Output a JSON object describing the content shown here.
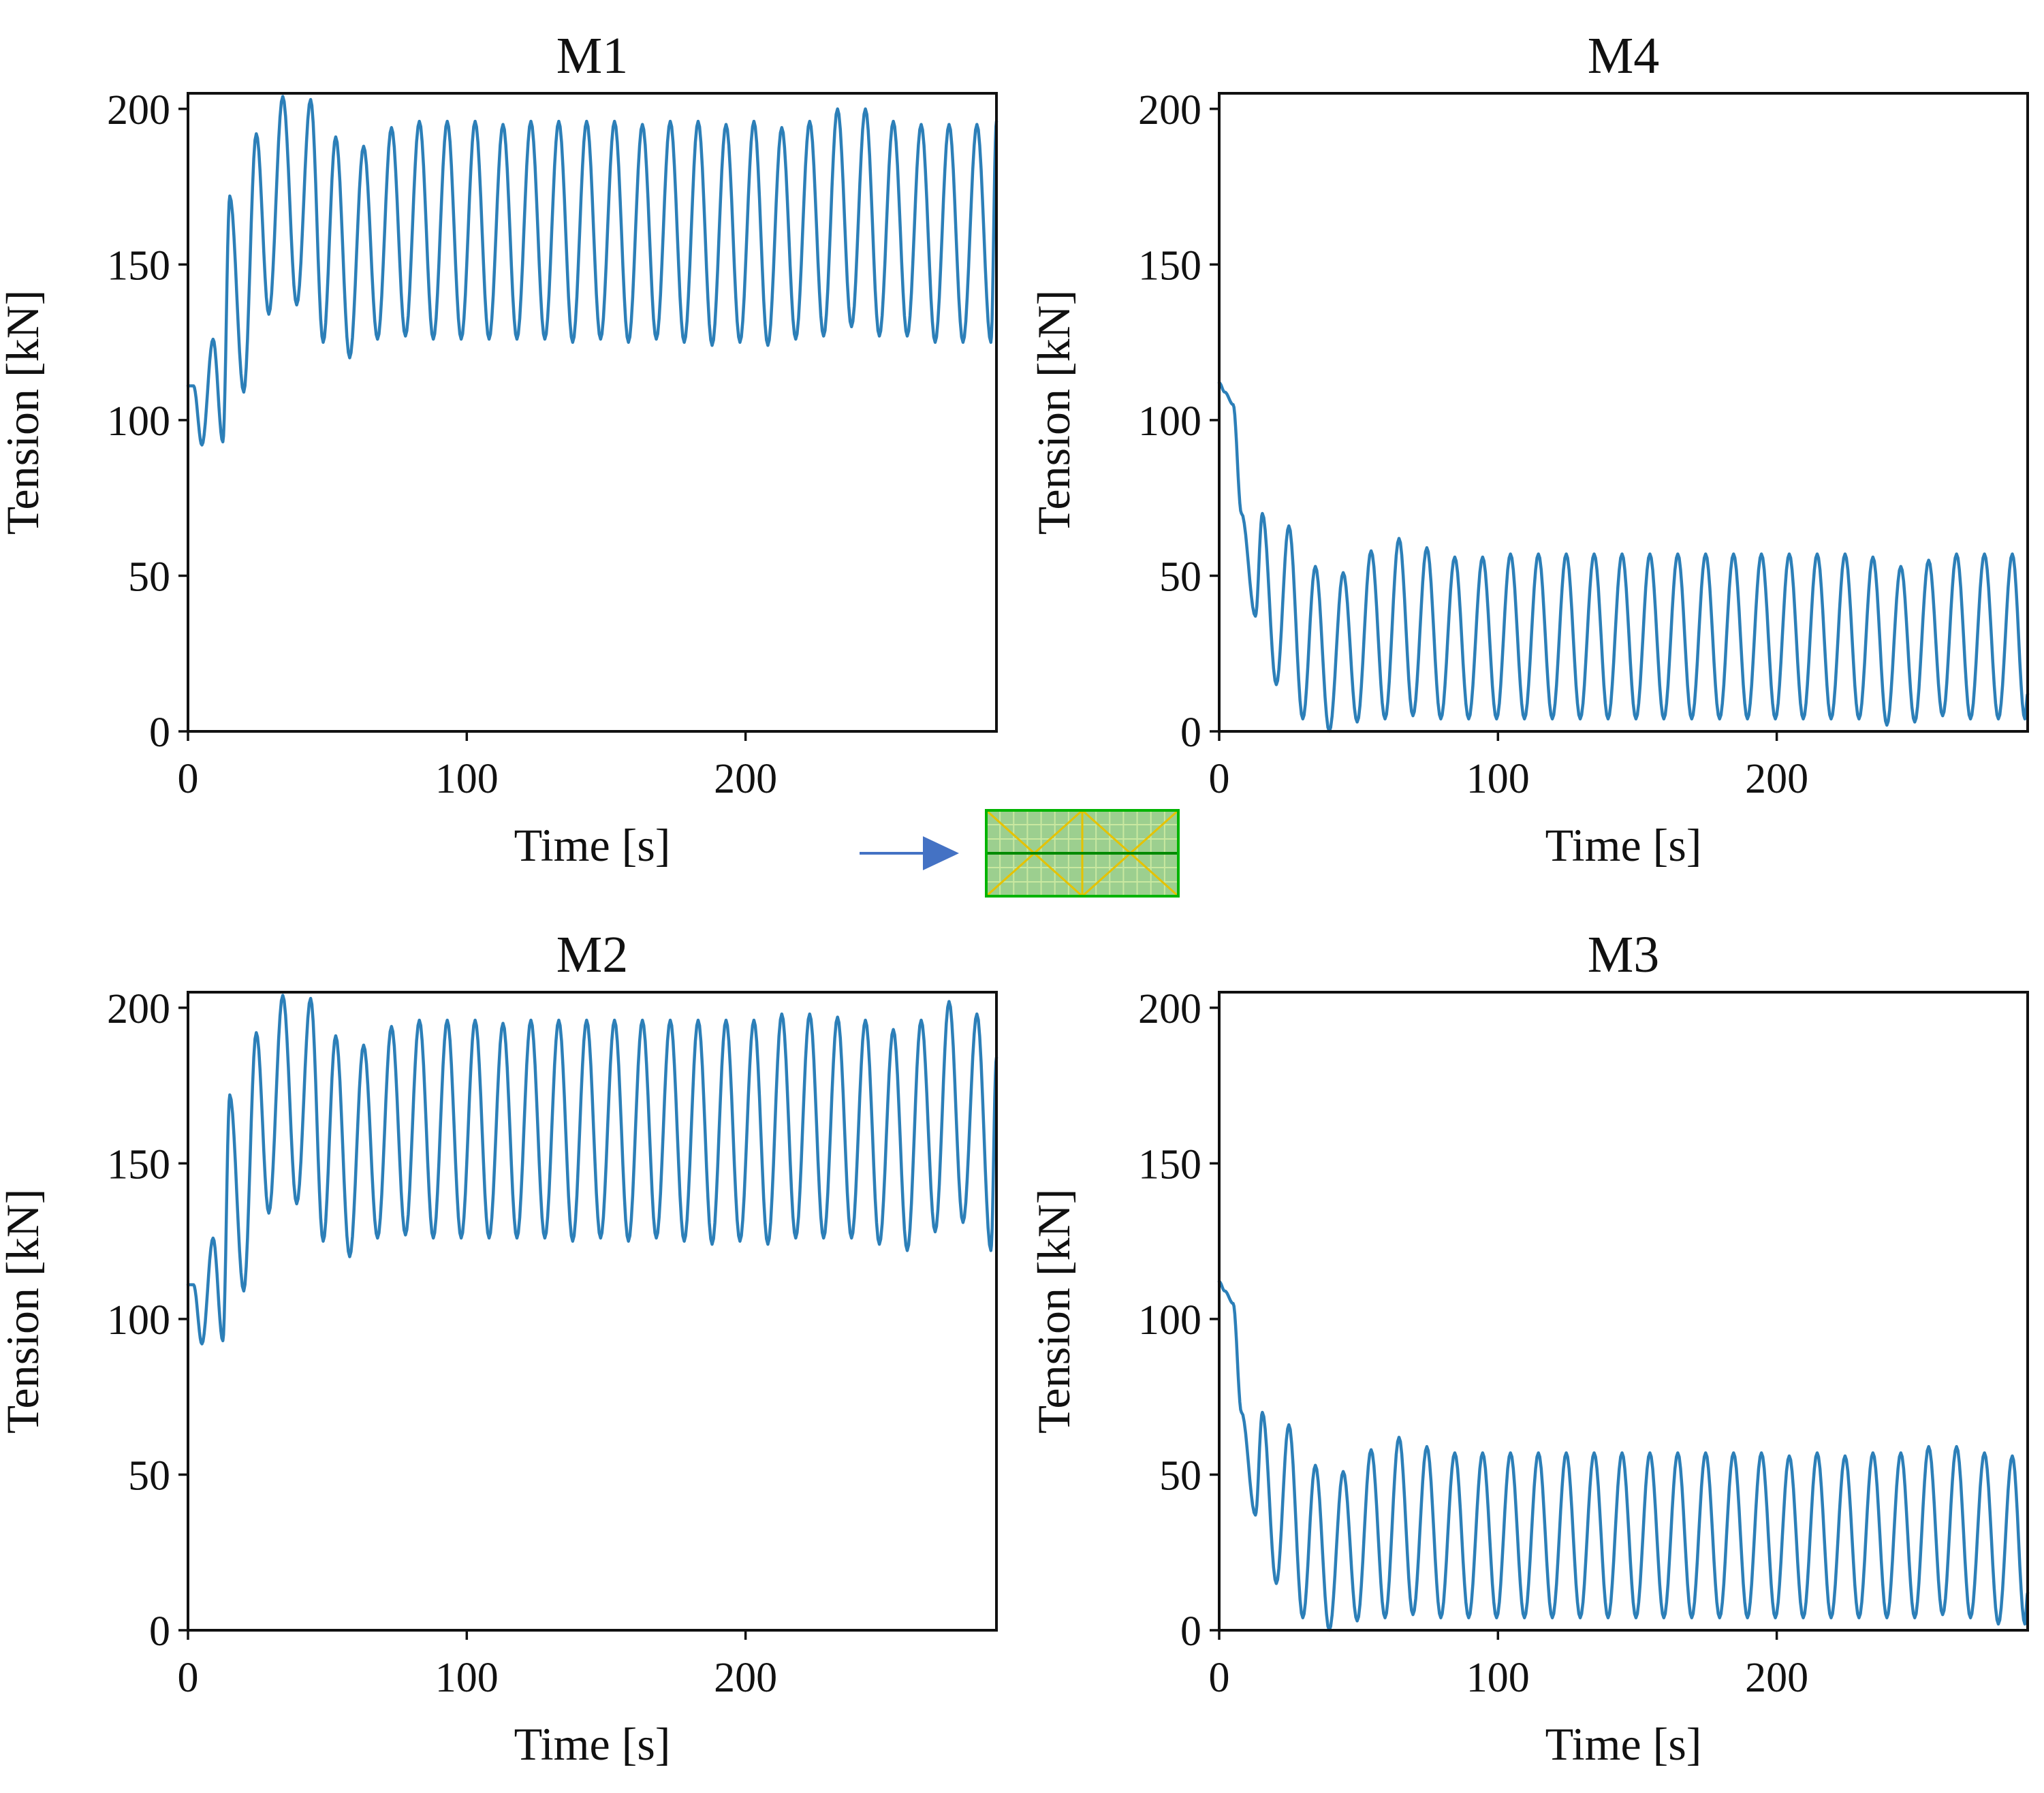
{
  "colors": {
    "line": "#2c7fb8",
    "arrow": "#4472c4",
    "inset_fill": "#9ccf8f",
    "inset_border": "#00b400",
    "inset_diag": "#e6c200"
  },
  "inset": {
    "icon": "platform-mooring-plan-icon",
    "arrow_icon": "arrow-right-icon"
  },
  "chart_data": [
    {
      "type": "line",
      "title": "M1",
      "xlabel": "Time [s]",
      "ylabel": "Tension [kN]",
      "xlim": [
        0,
        290
      ],
      "ylim": [
        0,
        205
      ],
      "xticks": [
        0,
        100,
        200
      ],
      "yticks": [
        0,
        50,
        100,
        150,
        200
      ],
      "series": [
        {
          "name": "M1",
          "x": [
            0,
            2,
            5,
            9,
            12.5,
            15,
            20,
            24.5,
            29,
            34,
            39,
            44,
            48.5,
            53,
            58,
            63,
            68,
            73,
            78,
            83,
            88,
            93,
            98,
            103,
            108,
            113,
            118,
            123,
            128,
            133,
            138,
            143,
            148,
            153,
            158,
            163,
            168,
            173,
            178,
            183,
            188,
            193,
            198,
            203,
            208,
            213,
            218,
            223,
            228,
            233,
            238,
            243,
            248,
            253,
            258,
            263,
            268,
            273,
            278,
            283,
            288,
            290
          ],
          "y": [
            111,
            111,
            92,
            126,
            93,
            172,
            109,
            192,
            134,
            204,
            137,
            203,
            125,
            191,
            120,
            188,
            126,
            194,
            127,
            196,
            126,
            196,
            126,
            196,
            126,
            195,
            126,
            196,
            126,
            196,
            125,
            196,
            126,
            196,
            125,
            195,
            126,
            196,
            125,
            196,
            124,
            195,
            125,
            196,
            124,
            194,
            126,
            196,
            127,
            200,
            130,
            200,
            127,
            196,
            127,
            195,
            125,
            195,
            125,
            195,
            125,
            196
          ]
        }
      ]
    },
    {
      "type": "line",
      "title": "M4",
      "xlabel": "Time [s]",
      "ylabel": "Tension [kN]",
      "xlim": [
        0,
        290
      ],
      "ylim": [
        0,
        205
      ],
      "xticks": [
        0,
        100,
        200
      ],
      "yticks": [
        0,
        50,
        100,
        150,
        200
      ],
      "series": [
        {
          "name": "M4",
          "x": [
            0,
            2,
            5,
            8,
            13,
            15.5,
            20.5,
            25,
            30,
            34.5,
            39.5,
            44.5,
            49.5,
            54.5,
            59.5,
            64.5,
            69.5,
            74.5,
            79.5,
            84.5,
            89.5,
            94.5,
            99.5,
            104.5,
            109.5,
            114.5,
            119.5,
            124.5,
            129.5,
            134.5,
            139.5,
            144.5,
            149.5,
            154.5,
            159.5,
            164.5,
            169.5,
            174.5,
            179.5,
            184.5,
            189.5,
            194.5,
            199.5,
            204.5,
            209.5,
            214.5,
            219.5,
            224.5,
            229.5,
            234.5,
            239.5,
            244.5,
            249.5,
            254.5,
            259.5,
            264.5,
            269.5,
            274.5,
            279.5,
            284.5,
            289,
            290
          ],
          "y": [
            112,
            109,
            105,
            70,
            37,
            70,
            15,
            66,
            4,
            53,
            0,
            51,
            3,
            58,
            4,
            62,
            5,
            59,
            4,
            56,
            4,
            56,
            4,
            57,
            4,
            57,
            4,
            57,
            4,
            57,
            4,
            57,
            4,
            57,
            4,
            57,
            4,
            57,
            4,
            57,
            4,
            57,
            4,
            57,
            4,
            57,
            4,
            57,
            4,
            56,
            2,
            53,
            3,
            55,
            5,
            57,
            4,
            57,
            4,
            57,
            4,
            12
          ]
        }
      ]
    },
    {
      "type": "line",
      "title": "M2",
      "xlabel": "Time [s]",
      "ylabel": "Tension [kN]",
      "xlim": [
        0,
        290
      ],
      "ylim": [
        0,
        205
      ],
      "xticks": [
        0,
        100,
        200
      ],
      "yticks": [
        0,
        50,
        100,
        150,
        200
      ],
      "series": [
        {
          "name": "M2",
          "x": [
            0,
            2,
            5,
            9,
            12.5,
            15,
            20,
            24.5,
            29,
            34,
            39,
            44,
            48.5,
            53,
            58,
            63,
            68,
            73,
            78,
            83,
            88,
            93,
            98,
            103,
            108,
            113,
            118,
            123,
            128,
            133,
            138,
            143,
            148,
            153,
            158,
            163,
            168,
            173,
            178,
            183,
            188,
            193,
            198,
            203,
            208,
            213,
            218,
            223,
            228,
            233,
            238,
            243,
            248,
            253,
            258,
            263,
            268,
            273,
            278,
            283,
            288,
            290
          ],
          "y": [
            111,
            111,
            92,
            126,
            93,
            172,
            109,
            192,
            134,
            204,
            137,
            203,
            125,
            191,
            120,
            188,
            126,
            194,
            127,
            196,
            126,
            196,
            126,
            196,
            126,
            195,
            126,
            196,
            126,
            196,
            125,
            196,
            126,
            196,
            125,
            196,
            126,
            196,
            125,
            196,
            124,
            196,
            125,
            196,
            124,
            198,
            126,
            198,
            126,
            197,
            126,
            196,
            124,
            193,
            122,
            196,
            128,
            202,
            131,
            198,
            122,
            184
          ]
        }
      ]
    },
    {
      "type": "line",
      "title": "M3",
      "xlabel": "Time [s]",
      "ylabel": "Tension [kN]",
      "xlim": [
        0,
        290
      ],
      "ylim": [
        0,
        205
      ],
      "xticks": [
        0,
        100,
        200
      ],
      "yticks": [
        0,
        50,
        100,
        150,
        200
      ],
      "series": [
        {
          "name": "M3",
          "x": [
            0,
            2,
            5,
            8,
            13,
            15.5,
            20.5,
            25,
            30,
            34.5,
            39.5,
            44.5,
            49.5,
            54.5,
            59.5,
            64.5,
            69.5,
            74.5,
            79.5,
            84.5,
            89.5,
            94.5,
            99.5,
            104.5,
            109.5,
            114.5,
            119.5,
            124.5,
            129.5,
            134.5,
            139.5,
            144.5,
            149.5,
            154.5,
            159.5,
            164.5,
            169.5,
            174.5,
            179.5,
            184.5,
            189.5,
            194.5,
            199.5,
            204.5,
            209.5,
            214.5,
            219.5,
            224.5,
            229.5,
            234.5,
            239.5,
            244.5,
            249.5,
            254.5,
            259.5,
            264.5,
            269.5,
            274.5,
            279.5,
            284.5,
            289,
            290
          ],
          "y": [
            112,
            109,
            105,
            70,
            37,
            70,
            15,
            66,
            4,
            53,
            0,
            51,
            3,
            58,
            4,
            62,
            5,
            59,
            4,
            57,
            4,
            57,
            4,
            57,
            4,
            57,
            4,
            57,
            4,
            57,
            4,
            57,
            4,
            57,
            4,
            57,
            4,
            57,
            4,
            57,
            4,
            57,
            4,
            56,
            4,
            57,
            4,
            56,
            4,
            57,
            4,
            57,
            4,
            59,
            5,
            59,
            4,
            57,
            2,
            56,
            2,
            12
          ]
        }
      ]
    }
  ]
}
